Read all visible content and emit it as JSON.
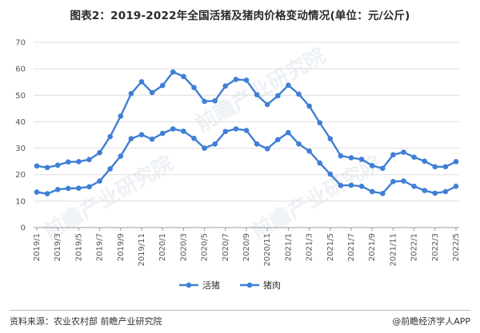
{
  "title": "图表2：2019-2022年全国活猪及猪肉价格变动情况(单位：元/公斤)",
  "source": "资料来源：农业农村部 前瞻产业研究院",
  "brand": "@前瞻经济学人APP",
  "watermark": "前瞻产业研究院",
  "colors": {
    "line": "#3f7fd6",
    "grid": "#dedede",
    "axis": "#999999"
  },
  "chart_data": {
    "type": "line",
    "title": "图表2：2019-2022年全国活猪及猪肉价格变动情况(单位：元/公斤)",
    "x": [
      "2019/1",
      "2019/2",
      "2019/3",
      "2019/4",
      "2019/5",
      "2019/6",
      "2019/7",
      "2019/8",
      "2019/9",
      "2019/10",
      "2019/11",
      "2019/12",
      "2020/1",
      "2020/2",
      "2020/3",
      "2020/4",
      "2020/5",
      "2020/6",
      "2020/7",
      "2020/8",
      "2020/9",
      "2020/10",
      "2020/11",
      "2020/12",
      "2021/1",
      "2021/2",
      "2021/3",
      "2021/4",
      "2021/5",
      "2021/6",
      "2021/7",
      "2021/8",
      "2021/9",
      "2021/10",
      "2021/11",
      "2021/12",
      "2022/1",
      "2022/2",
      "2022/3",
      "2022/4",
      "2022/5"
    ],
    "tick_labels": [
      "2019/1",
      "2019/3",
      "2019/5",
      "2019/7",
      "2019/9",
      "2019/11",
      "2020/1",
      "2020/3",
      "2020/5",
      "2020/7",
      "2020/9",
      "2020/11",
      "2021/1",
      "2021/3",
      "2021/5",
      "2021/7",
      "2021/9",
      "2021/11",
      "2022/1",
      "2022/3",
      "2022/5"
    ],
    "series": [
      {
        "name": "活猪",
        "values": [
          13.4,
          12.8,
          14.4,
          14.8,
          14.9,
          15.4,
          17.6,
          22.2,
          27.0,
          33.6,
          35.1,
          33.4,
          35.6,
          37.3,
          36.4,
          33.7,
          30.0,
          31.6,
          36.3,
          37.3,
          36.7,
          31.6,
          29.8,
          33.2,
          35.9,
          31.6,
          28.9,
          24.4,
          20.2,
          15.9,
          16.0,
          15.6,
          13.6,
          12.9,
          17.4,
          17.6,
          15.6,
          14.0,
          13.0,
          13.6,
          15.6
        ]
      },
      {
        "name": "猪肉",
        "values": [
          23.3,
          22.7,
          23.6,
          24.8,
          24.9,
          25.7,
          28.3,
          34.4,
          42.1,
          50.6,
          55.1,
          51.0,
          53.7,
          58.8,
          57.1,
          52.9,
          47.7,
          47.9,
          53.5,
          56.0,
          55.7,
          50.2,
          46.5,
          49.8,
          53.8,
          50.4,
          45.9,
          39.6,
          33.6,
          27.1,
          26.4,
          25.8,
          23.4,
          22.4,
          27.5,
          28.5,
          26.6,
          25.1,
          23.0,
          23.0,
          24.9
        ]
      }
    ],
    "ylim": [
      0,
      70
    ],
    "yticks": [
      0,
      10,
      20,
      30,
      40,
      50,
      60,
      70
    ],
    "grid": true,
    "legend": "bottom-center"
  }
}
